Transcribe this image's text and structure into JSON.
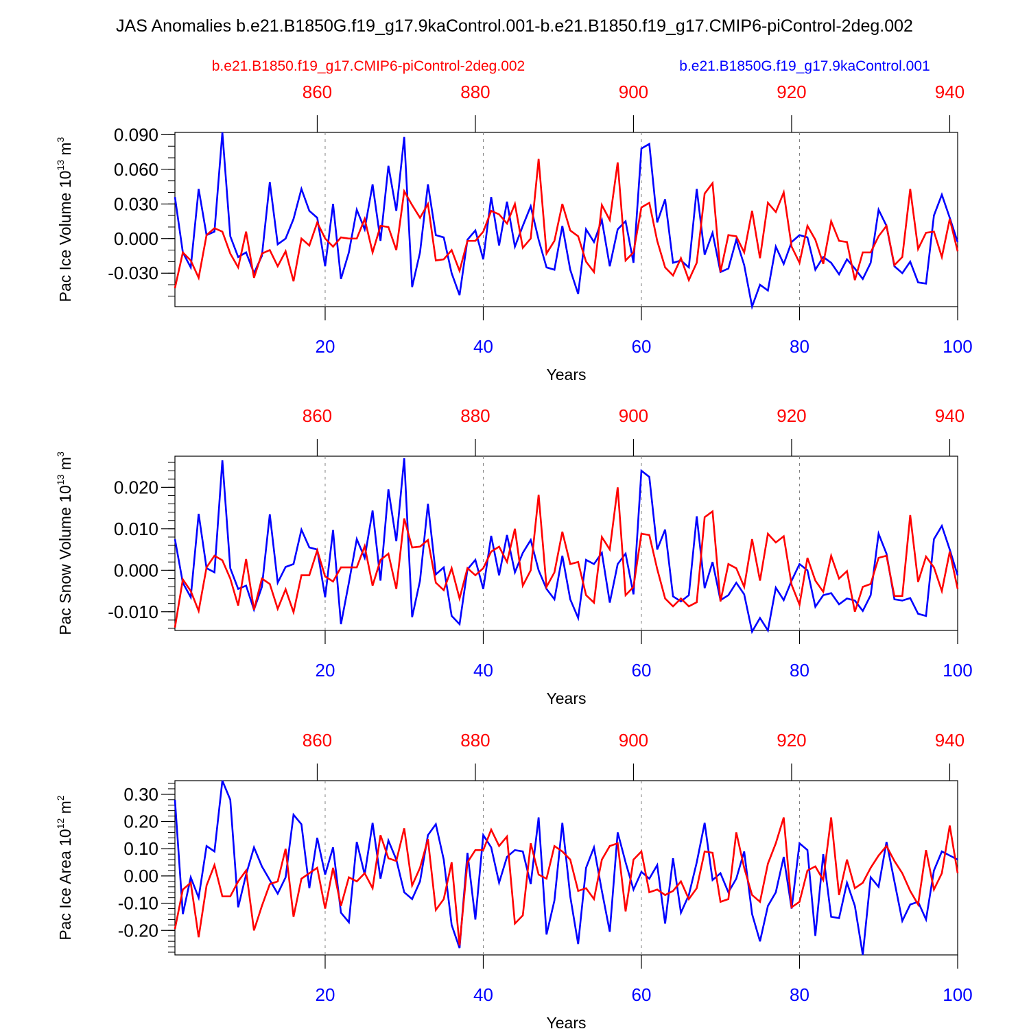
{
  "title": "JAS Anomalies b.e21.B1850G.f19_g17.9kaControl.001-b.e21.B1850.f19_g17.CMIP6-piControl-2deg.002",
  "legend": {
    "red_case": "b.e21.B1850.f19_g17.CMIP6-piControl-2deg.002",
    "blue_case": "b.e21.B1850G.f19_g17.9kaControl.001"
  },
  "colors": {
    "red": "#ff0000",
    "blue": "#0000ff",
    "axis": "#000000",
    "grid": "#808080"
  },
  "chart_data": [
    {
      "type": "line",
      "ylabel_main": "Pac Ice Volume 10",
      "ylabel_exp": "13",
      "ylabel_unit": " m",
      "ylabel_unit_exp": "3",
      "xlabel": "Years",
      "xlim": [
        1,
        100
      ],
      "ylim": [
        -0.059,
        0.092
      ],
      "yticks": [
        -0.03,
        0.0,
        0.03,
        0.06,
        0.09
      ],
      "ytick_labels": [
        "-0.030",
        "0.000",
        "0.030",
        "0.060",
        "0.090"
      ],
      "yminor_step": 0.01,
      "bottom_ticks": [
        20,
        40,
        60,
        80,
        100
      ],
      "bottom_tick_labels": [
        "20",
        "40",
        "60",
        "80",
        "100"
      ],
      "top_ticks": [
        860,
        880,
        900,
        920,
        940
      ],
      "top_tick_labels": [
        "860",
        "880",
        "900",
        "920",
        "940"
      ],
      "top_offset": 841,
      "grid_x": [
        20,
        40,
        60,
        80
      ],
      "series": [
        {
          "name": "b.e21.B1850G.f19_g17.9kaControl.001",
          "color": "blue",
          "values": [
            0.036,
            -0.012,
            -0.025,
            0.043,
            0.003,
            0.006,
            0.092,
            0.002,
            -0.016,
            -0.012,
            -0.03,
            -0.015,
            0.049,
            -0.005,
            0.0,
            0.017,
            0.043,
            0.024,
            0.018,
            -0.024,
            0.03,
            -0.035,
            -0.012,
            0.025,
            0.008,
            0.047,
            -0.002,
            0.063,
            0.024,
            0.088,
            -0.042,
            -0.012,
            0.047,
            0.003,
            0.001,
            -0.03,
            -0.049,
            -0.001,
            0.007,
            -0.018,
            0.036,
            -0.006,
            0.032,
            -0.007,
            0.011,
            0.028,
            -0.001,
            -0.025,
            -0.027,
            0.011,
            -0.027,
            -0.048,
            0.008,
            -0.003,
            0.016,
            -0.024,
            0.008,
            0.015,
            -0.021,
            0.078,
            0.082,
            0.014,
            0.034,
            -0.021,
            -0.019,
            -0.025,
            0.043,
            -0.014,
            0.005,
            -0.029,
            -0.026,
            -0.001,
            -0.023,
            -0.059,
            -0.04,
            -0.045,
            -0.007,
            -0.022,
            -0.003,
            0.003,
            0.001,
            -0.027,
            -0.016,
            -0.021,
            -0.031,
            -0.018,
            -0.026,
            -0.035,
            -0.021,
            0.025,
            0.011,
            -0.024,
            -0.03,
            -0.02,
            -0.038,
            -0.039,
            0.02,
            0.038,
            0.018,
            -0.003
          ]
        },
        {
          "name": "b.e21.B1850.f19_g17.CMIP6-piControl-2deg.002",
          "color": "red",
          "values": [
            -0.043,
            -0.012,
            -0.019,
            -0.034,
            0.003,
            0.009,
            0.006,
            -0.013,
            -0.025,
            0.006,
            -0.034,
            -0.013,
            -0.01,
            -0.024,
            -0.011,
            -0.037,
            0.0,
            -0.006,
            0.014,
            0.0,
            -0.007,
            0.001,
            0.0,
            0.0,
            0.017,
            -0.012,
            0.011,
            0.01,
            -0.01,
            0.041,
            0.029,
            0.018,
            0.03,
            -0.019,
            -0.018,
            -0.01,
            -0.028,
            -0.002,
            -0.002,
            0.006,
            0.024,
            0.021,
            0.013,
            0.03,
            -0.008,
            0.0,
            0.069,
            -0.013,
            -0.002,
            0.03,
            0.007,
            0.002,
            -0.02,
            -0.029,
            0.029,
            0.016,
            0.066,
            -0.019,
            -0.012,
            0.027,
            0.031,
            -0.002,
            -0.025,
            -0.032,
            -0.017,
            -0.036,
            -0.021,
            0.039,
            0.048,
            -0.029,
            0.003,
            0.002,
            -0.012,
            0.024,
            -0.017,
            0.031,
            0.023,
            0.04,
            -0.007,
            -0.021,
            0.011,
            -0.001,
            -0.022,
            0.015,
            -0.002,
            -0.003,
            -0.036,
            -0.012,
            -0.012,
            0.002,
            0.011,
            -0.023,
            -0.016,
            0.043,
            -0.009,
            0.005,
            0.006,
            -0.016,
            0.017,
            -0.011
          ]
        }
      ]
    },
    {
      "type": "line",
      "ylabel_main": "Pac Snow Volume 10",
      "ylabel_exp": "13",
      "ylabel_unit": " m",
      "ylabel_unit_exp": "3",
      "xlabel": "Years",
      "xlim": [
        1,
        100
      ],
      "ylim": [
        -0.0145,
        0.0275
      ],
      "yticks": [
        -0.01,
        0.0,
        0.01,
        0.02
      ],
      "ytick_labels": [
        "-0.010",
        "0.000",
        "0.010",
        "0.020"
      ],
      "yminor_step": 0.002,
      "bottom_ticks": [
        20,
        40,
        60,
        80,
        100
      ],
      "bottom_tick_labels": [
        "20",
        "40",
        "60",
        "80",
        "100"
      ],
      "top_ticks": [
        860,
        880,
        900,
        920,
        940
      ],
      "top_tick_labels": [
        "860",
        "880",
        "900",
        "920",
        "940"
      ],
      "top_offset": 841,
      "grid_x": [
        20,
        40,
        60,
        80
      ],
      "series": [
        {
          "name": "b.e21.B1850G.f19_g17.9kaControl.001",
          "color": "blue",
          "values": [
            0.0075,
            -0.003,
            -0.0065,
            0.0136,
            0.0005,
            -0.0005,
            0.0265,
            0.0005,
            -0.0045,
            -0.0037,
            -0.0095,
            -0.004,
            0.0135,
            -0.003,
            0.0008,
            0.0015,
            0.0098,
            0.0055,
            0.005,
            -0.0065,
            0.0097,
            -0.013,
            -0.003,
            0.0075,
            0.003,
            0.0144,
            -0.0025,
            0.0195,
            0.007,
            0.027,
            -0.0113,
            -0.0025,
            0.016,
            -0.001,
            0.0007,
            -0.011,
            -0.013,
            0.0002,
            0.0025,
            -0.0045,
            0.0083,
            -0.0012,
            0.0085,
            -0.0005,
            0.0042,
            0.0073,
            0.0,
            -0.0045,
            -0.007,
            0.0035,
            -0.007,
            -0.0115,
            0.0025,
            0.0015,
            0.0042,
            -0.0078,
            0.0015,
            0.004,
            -0.0058,
            0.024,
            0.0225,
            0.005,
            0.0098,
            -0.0063,
            -0.0075,
            -0.006,
            0.013,
            -0.0043,
            0.002,
            -0.0072,
            -0.006,
            -0.003,
            -0.0058,
            -0.0148,
            -0.0115,
            -0.0145,
            -0.0042,
            -0.0072,
            -0.0025,
            0.0015,
            0.0,
            -0.0088,
            -0.006,
            -0.0055,
            -0.0082,
            -0.0068,
            -0.0073,
            -0.0098,
            -0.006,
            0.0088,
            0.004,
            -0.007,
            -0.0073,
            -0.0067,
            -0.0105,
            -0.011,
            0.0075,
            0.0107,
            0.005,
            -0.0012
          ]
        },
        {
          "name": "b.e21.B1850.f19_g17.CMIP6-piControl-2deg.002",
          "color": "red",
          "values": [
            -0.0138,
            -0.0022,
            -0.005,
            -0.0098,
            0.0007,
            0.0035,
            0.0024,
            -0.002,
            -0.0085,
            0.0027,
            -0.0095,
            -0.002,
            -0.0033,
            -0.0093,
            -0.0046,
            -0.0101,
            -0.0012,
            -0.0012,
            0.0048,
            -0.0015,
            -0.0027,
            0.0007,
            0.0007,
            0.0007,
            0.0058,
            -0.0037,
            0.0025,
            0.004,
            -0.0045,
            0.0125,
            0.0055,
            0.0057,
            0.0073,
            -0.003,
            -0.0048,
            0.0005,
            -0.0068,
            0.0005,
            -0.0012,
            0.0005,
            0.0045,
            0.0057,
            0.002,
            0.01,
            -0.0037,
            0.0,
            0.0182,
            -0.004,
            -0.0005,
            0.0093,
            0.0015,
            0.002,
            -0.006,
            -0.0078,
            0.008,
            0.005,
            0.02,
            -0.006,
            -0.004,
            0.0088,
            0.0085,
            0.0003,
            -0.0068,
            -0.0087,
            -0.0068,
            -0.0087,
            -0.0077,
            0.0128,
            0.0142,
            -0.0075,
            0.0015,
            0.0005,
            -0.004,
            0.0075,
            -0.0025,
            0.0088,
            0.0067,
            0.0082,
            -0.0035,
            -0.0083,
            0.003,
            -0.0025,
            -0.0052,
            0.0035,
            -0.002,
            -0.0002,
            -0.01,
            -0.004,
            -0.0033,
            0.003,
            0.0035,
            -0.0062,
            -0.0062,
            0.0133,
            -0.0028,
            0.0033,
            0.0007,
            -0.005,
            0.0045,
            -0.0045
          ]
        }
      ]
    },
    {
      "type": "line",
      "ylabel_main": "Pac Ice Area 10",
      "ylabel_exp": "12",
      "ylabel_unit": " m",
      "ylabel_unit_exp": "2",
      "xlabel": "Years",
      "xlim": [
        1,
        100
      ],
      "ylim": [
        -0.29,
        0.35
      ],
      "yticks": [
        -0.2,
        -0.1,
        0.0,
        0.1,
        0.2,
        0.3
      ],
      "ytick_labels": [
        "-0.20",
        "-0.10",
        "0.00",
        "0.10",
        "0.20",
        "0.30"
      ],
      "yminor_step": 0.02,
      "bottom_ticks": [
        20,
        40,
        60,
        80,
        100
      ],
      "bottom_tick_labels": [
        "20",
        "40",
        "60",
        "80",
        "100"
      ],
      "top_ticks": [
        860,
        880,
        900,
        920,
        940
      ],
      "top_tick_labels": [
        "860",
        "880",
        "900",
        "920",
        "940"
      ],
      "top_offset": 841,
      "grid_x": [
        20,
        40,
        60,
        80
      ],
      "series": [
        {
          "name": "b.e21.B1850G.f19_g17.9kaControl.001",
          "color": "blue",
          "values": [
            0.28,
            -0.14,
            -0.005,
            -0.08,
            0.11,
            0.09,
            0.35,
            0.28,
            -0.115,
            0.005,
            0.105,
            0.035,
            -0.015,
            -0.065,
            -0.005,
            0.225,
            0.19,
            -0.045,
            0.14,
            0.005,
            0.105,
            -0.135,
            -0.17,
            0.125,
            0.005,
            0.195,
            -0.01,
            0.13,
            0.06,
            -0.06,
            -0.085,
            -0.02,
            0.15,
            0.19,
            0.06,
            -0.18,
            -0.265,
            0.085,
            -0.16,
            0.15,
            0.105,
            -0.025,
            0.07,
            0.095,
            0.09,
            -0.03,
            0.215,
            -0.215,
            -0.09,
            0.195,
            -0.075,
            -0.25,
            0.03,
            0.105,
            -0.055,
            -0.205,
            0.16,
            0.05,
            -0.05,
            0.015,
            -0.01,
            0.04,
            -0.175,
            0.065,
            -0.135,
            -0.07,
            0.05,
            0.195,
            -0.015,
            0.01,
            -0.06,
            -0.01,
            0.09,
            -0.14,
            -0.24,
            -0.11,
            -0.06,
            0.07,
            -0.12,
            0.12,
            0.095,
            -0.22,
            0.08,
            -0.15,
            -0.155,
            -0.025,
            -0.11,
            -0.29,
            -0.005,
            -0.04,
            0.125,
            -0.02,
            -0.165,
            -0.105,
            -0.095,
            -0.16,
            0.02,
            0.09,
            0.075,
            0.06
          ]
        },
        {
          "name": "b.e21.B1850.f19_g17.CMIP6-piControl-2deg.002",
          "color": "red",
          "values": [
            -0.195,
            -0.05,
            -0.025,
            -0.225,
            -0.035,
            0.04,
            -0.075,
            -0.075,
            -0.02,
            0.02,
            -0.2,
            -0.11,
            -0.03,
            -0.02,
            0.1,
            -0.15,
            -0.01,
            0.01,
            0.03,
            -0.12,
            0.03,
            -0.11,
            -0.005,
            -0.02,
            0.01,
            -0.045,
            0.15,
            0.065,
            0.055,
            0.175,
            -0.035,
            0.03,
            0.135,
            -0.125,
            -0.085,
            0.05,
            -0.255,
            0.05,
            0.095,
            0.095,
            0.17,
            0.11,
            0.145,
            -0.175,
            -0.145,
            0.12,
            0.005,
            -0.01,
            0.11,
            0.09,
            0.06,
            -0.055,
            -0.045,
            -0.085,
            0.06,
            0.11,
            0.12,
            -0.13,
            0.06,
            0.09,
            -0.06,
            -0.05,
            -0.07,
            -0.055,
            -0.02,
            -0.085,
            -0.045,
            0.09,
            0.085,
            -0.095,
            -0.085,
            0.16,
            0.03,
            -0.07,
            -0.095,
            0.045,
            0.12,
            0.215,
            -0.115,
            -0.095,
            0.02,
            0.035,
            -0.015,
            0.215,
            -0.07,
            0.06,
            -0.045,
            -0.025,
            0.03,
            0.075,
            0.11,
            0.055,
            0.01,
            -0.055,
            -0.105,
            0.095,
            -0.05,
            0.01,
            0.185,
            0.01
          ]
        }
      ]
    }
  ]
}
